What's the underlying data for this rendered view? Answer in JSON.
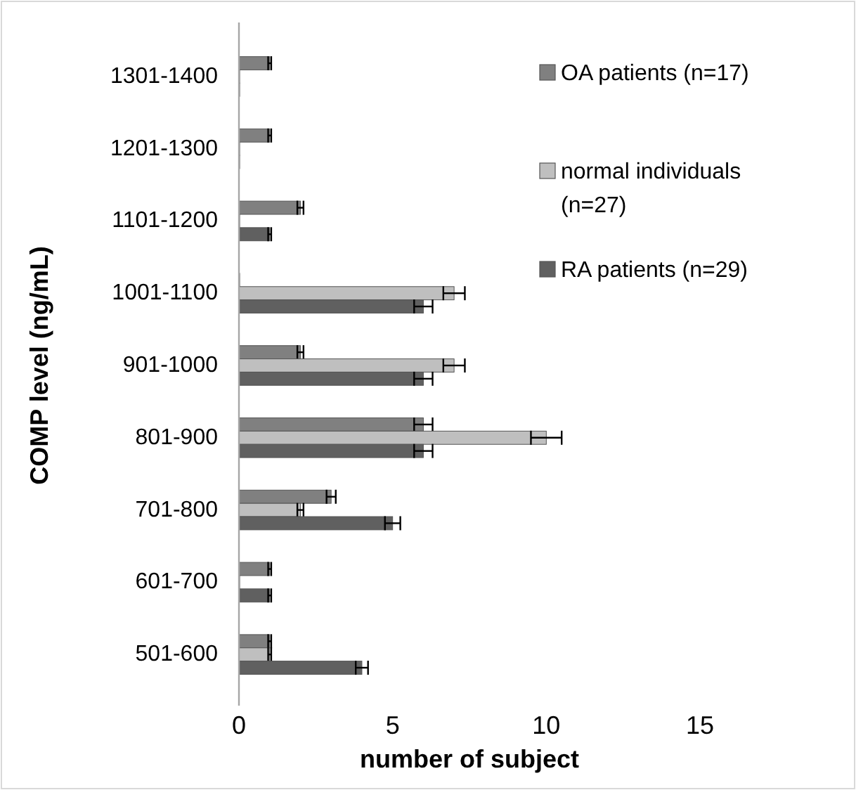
{
  "chart_data": {
    "type": "bar",
    "orientation": "horizontal",
    "xlabel": "number of subject",
    "ylabel": "COMP level (ng/mL)",
    "categories": [
      "1301-1400",
      "1201-1300",
      "1101-1200",
      "1001-1100",
      "901-1000",
      "801-900",
      "701-800",
      "601-700",
      "501-600"
    ],
    "series": [
      {
        "name": "OA patients (n=17)",
        "color": "#808080",
        "values": [
          1,
          1,
          2,
          0,
          2,
          6,
          3,
          1,
          1
        ],
        "errors": [
          0.05,
          0.05,
          0.1,
          null,
          0.1,
          0.3,
          0.15,
          0.05,
          0.05
        ]
      },
      {
        "name": "normal individuals (n=27)",
        "color": "#bfbfbf",
        "values": [
          0,
          0,
          0,
          7,
          7,
          10,
          2,
          0,
          1
        ],
        "errors": [
          null,
          null,
          null,
          0.35,
          0.35,
          0.5,
          0.1,
          null,
          0.05
        ]
      },
      {
        "name": "RA patients (n=29)",
        "color": "#606060",
        "values": [
          0,
          0,
          1,
          6,
          6,
          6,
          5,
          1,
          4
        ],
        "errors": [
          null,
          null,
          0.05,
          0.3,
          0.3,
          0.3,
          0.25,
          0.05,
          0.2
        ]
      }
    ],
    "xlim": [
      0,
      15
    ],
    "xticks": [
      0,
      5,
      10,
      15
    ],
    "grid": false,
    "legend": "top right"
  }
}
